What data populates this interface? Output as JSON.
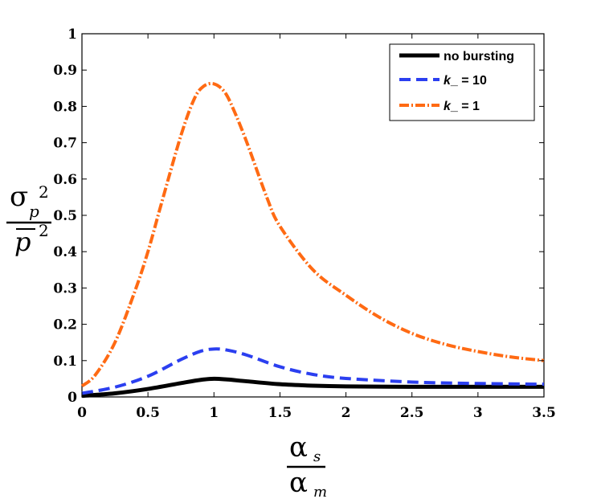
{
  "chart_data": {
    "type": "line",
    "title": "",
    "xlabel": {
      "numerator_symbol": "α",
      "numerator_sub": "s",
      "denominator_symbol": "α",
      "denominator_sub": "m"
    },
    "ylabel": {
      "numerator_symbol": "σ",
      "numerator_sub": "p",
      "numerator_sup": "2",
      "denominator_symbol": "p",
      "denominator_sup": "2"
    },
    "xlim": [
      0,
      3.5
    ],
    "ylim": [
      0,
      1
    ],
    "xticks": [
      0,
      0.5,
      1,
      1.5,
      2,
      2.5,
      3,
      3.5
    ],
    "xtick_labels": [
      "0",
      "0.5",
      "1",
      "1.5",
      "2",
      "2.5",
      "3",
      "3.5"
    ],
    "yticks": [
      0,
      0.1,
      0.2,
      0.3,
      0.4,
      0.5,
      0.6,
      0.7,
      0.8,
      0.9,
      1
    ],
    "ytick_labels": [
      "0",
      "0.1",
      "0.2",
      "0.3",
      "0.4",
      "0.5",
      "0.6",
      "0.7",
      "0.8",
      "0.9",
      "1"
    ],
    "grid": false,
    "legend_position": "top-right",
    "series": [
      {
        "name": "no bursting",
        "label_prefix": "",
        "label_suffix": "no bursting",
        "color": "#000000",
        "style": "solid",
        "x": [
          0,
          0.25,
          0.5,
          0.75,
          0.9,
          1.0,
          1.1,
          1.25,
          1.5,
          1.75,
          2.0,
          2.5,
          3.0,
          3.5
        ],
        "y": [
          0.003,
          0.01,
          0.022,
          0.038,
          0.047,
          0.05,
          0.048,
          0.043,
          0.035,
          0.031,
          0.029,
          0.028,
          0.028,
          0.028
        ]
      },
      {
        "name": "k_ = 10",
        "label_prefix": "k",
        "label_suffix": "_ = 10",
        "color": "#2b3ff0",
        "style": "dashed",
        "x": [
          0,
          0.25,
          0.5,
          0.75,
          0.9,
          1.0,
          1.1,
          1.25,
          1.5,
          1.75,
          2.0,
          2.5,
          3.0,
          3.5
        ],
        "y": [
          0.01,
          0.027,
          0.057,
          0.103,
          0.126,
          0.132,
          0.129,
          0.115,
          0.083,
          0.062,
          0.051,
          0.041,
          0.037,
          0.035
        ]
      },
      {
        "name": "k_ = 1",
        "label_prefix": "k",
        "label_suffix": "_ = 1",
        "color": "#ff6a13",
        "style": "dashdot",
        "x": [
          0,
          0.1,
          0.25,
          0.4,
          0.5,
          0.6,
          0.75,
          0.85,
          0.92,
          1.0,
          1.08,
          1.15,
          1.25,
          1.4,
          1.5,
          1.75,
          2.0,
          2.25,
          2.5,
          2.75,
          3.0,
          3.25,
          3.5
        ],
        "y": [
          0.03,
          0.06,
          0.15,
          0.29,
          0.4,
          0.53,
          0.72,
          0.82,
          0.855,
          0.862,
          0.84,
          0.79,
          0.7,
          0.55,
          0.47,
          0.35,
          0.28,
          0.22,
          0.175,
          0.145,
          0.125,
          0.11,
          0.1
        ]
      }
    ]
  }
}
